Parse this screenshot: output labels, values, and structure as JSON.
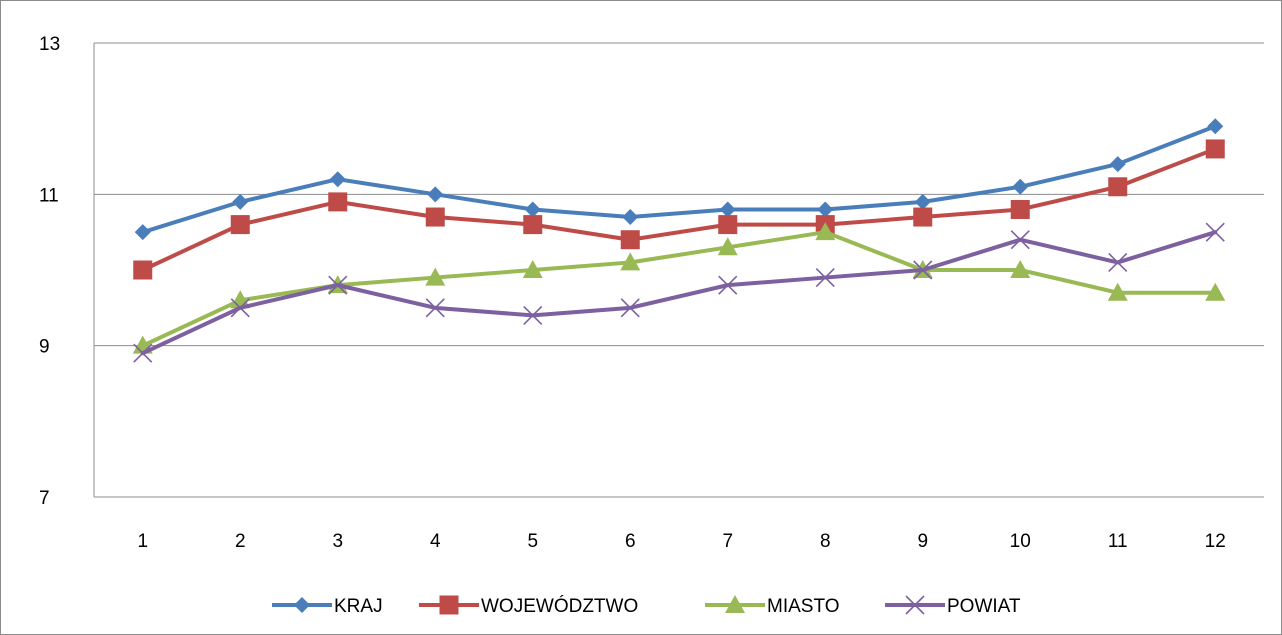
{
  "chart_data": {
    "type": "line",
    "x": [
      "1",
      "2",
      "3",
      "4",
      "5",
      "6",
      "7",
      "8",
      "9",
      "10",
      "11",
      "12"
    ],
    "ylim": [
      7,
      13
    ],
    "yticks": [
      "7",
      "9",
      "11",
      "13"
    ],
    "grid": "horizontal",
    "legend": "bottom",
    "series": [
      {
        "name": "KRAJ",
        "color": "#4a7ebb",
        "marker": "diamond",
        "values": [
          10.5,
          10.9,
          11.2,
          11.0,
          10.8,
          10.7,
          10.8,
          10.8,
          10.9,
          11.1,
          11.4,
          11.9
        ]
      },
      {
        "name": "WOJEWÓDZTWO",
        "color": "#be4b48",
        "marker": "square",
        "values": [
          10.0,
          10.6,
          10.9,
          10.7,
          10.6,
          10.4,
          10.6,
          10.6,
          10.7,
          10.8,
          11.1,
          11.6
        ]
      },
      {
        "name": "MIASTO",
        "color": "#98b954",
        "marker": "triangle",
        "values": [
          9.0,
          9.6,
          9.8,
          9.9,
          10.0,
          10.1,
          10.3,
          10.5,
          10.0,
          10.0,
          9.7,
          9.7
        ]
      },
      {
        "name": "POWIAT",
        "color": "#7d60a0",
        "marker": "x",
        "values": [
          8.9,
          9.5,
          9.8,
          9.5,
          9.4,
          9.5,
          9.8,
          9.9,
          10.0,
          10.4,
          10.1,
          10.5
        ]
      }
    ]
  }
}
